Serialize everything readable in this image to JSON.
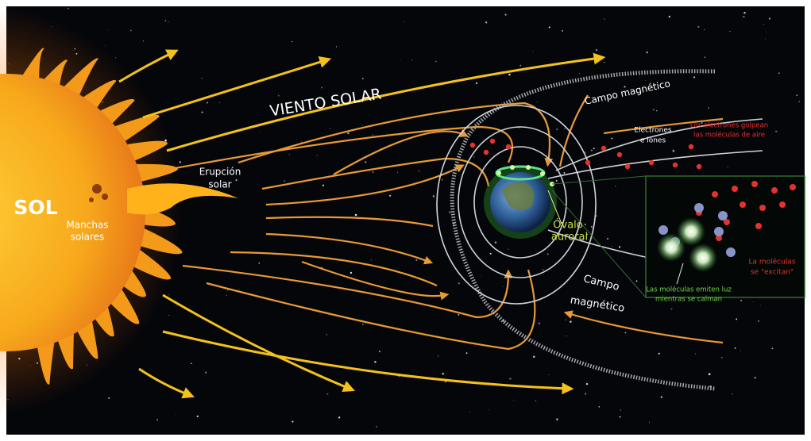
{
  "labels": {
    "sun": "SOL",
    "sunspots": [
      "Manchas",
      "solares"
    ],
    "flare": [
      "Erupción",
      "solar"
    ],
    "solar_wind": "VIENTO SOLAR",
    "field_top": "Campo magnético",
    "particles": [
      "Electrones",
      "e iones"
    ],
    "collision": [
      "Los electrones golpean",
      "las moléculas de aire"
    ],
    "auroral_oval": [
      "Óvalo",
      "auroral"
    ],
    "excited": [
      "La moléculas",
      "se \"excitan\""
    ],
    "emission": [
      "Las moléculas emiten luz",
      "mientras se calman"
    ],
    "field_bottom": [
      "Campo",
      "magnético"
    ]
  }
}
